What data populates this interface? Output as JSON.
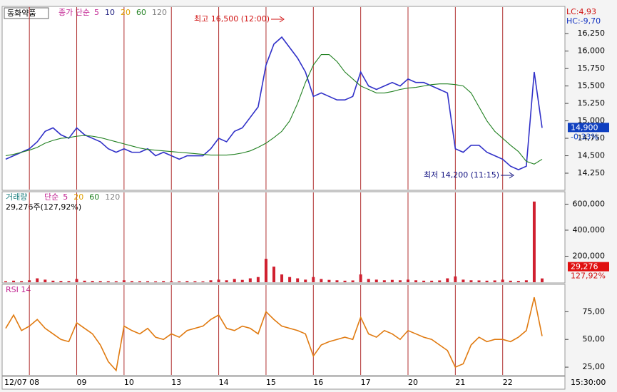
{
  "chart_data": [
    {
      "type": "line",
      "title": "동화약품",
      "legend_title": "종가 단순",
      "legend": [
        {
          "label": "5",
          "color": "#c02090"
        },
        {
          "label": "10",
          "color": "#202080"
        },
        {
          "label": "20",
          "color": "#e0a000"
        },
        {
          "label": "60",
          "color": "#208020"
        },
        {
          "label": "120",
          "color": "#808080"
        }
      ],
      "x_labels": [
        "12/07",
        "08",
        "09",
        "10",
        "13",
        "14",
        "15",
        "16",
        "17",
        "20",
        "21",
        "22"
      ],
      "time_label": "15:30:00",
      "annotations": [
        {
          "text": "최고 16,500 (12:00)",
          "color": "#d01010"
        },
        {
          "text": "최저 14,200 (11:15)",
          "color": "#101080"
        }
      ],
      "lc": "LC:4,93",
      "hc": "HC:-9,70",
      "last_label": "14,900",
      "change_label": "-0,33%",
      "series": [
        {
          "name": "종가",
          "color": "#3030c8",
          "values": [
            14450,
            14500,
            14550,
            14600,
            14700,
            14850,
            14900,
            14800,
            14750,
            14900,
            14800,
            14750,
            14700,
            14600,
            14550,
            14600,
            14550,
            14550,
            14600,
            14500,
            14550,
            14500,
            14450,
            14500,
            14500,
            14500,
            14600,
            14750,
            14700,
            14850,
            14900,
            15050,
            15200,
            15800,
            16100,
            16200,
            16050,
            15900,
            15700,
            15350,
            15400,
            15350,
            15300,
            15300,
            15350,
            15700,
            15500,
            15450,
            15500,
            15550,
            15500,
            15600,
            15550,
            15550,
            15500,
            15450,
            15400,
            14600,
            14550,
            14650,
            14650,
            14550,
            14500,
            14450,
            14350,
            14300,
            14350,
            15700,
            14900
          ]
        },
        {
          "name": "60",
          "color": "#208020",
          "values": [
            14500,
            14520,
            14550,
            14580,
            14620,
            14680,
            14720,
            14750,
            14760,
            14780,
            14790,
            14780,
            14760,
            14730,
            14700,
            14670,
            14640,
            14610,
            14590,
            14580,
            14570,
            14560,
            14550,
            14540,
            14530,
            14520,
            14510,
            14510,
            14510,
            14520,
            14540,
            14570,
            14620,
            14680,
            14760,
            14850,
            15000,
            15250,
            15550,
            15800,
            15950,
            15950,
            15850,
            15700,
            15600,
            15500,
            15450,
            15400,
            15400,
            15420,
            15450,
            15470,
            15480,
            15500,
            15520,
            15530,
            15530,
            15520,
            15500,
            15400,
            15200,
            15000,
            14850,
            14750,
            14650,
            14560,
            14420,
            14380,
            14450
          ]
        }
      ],
      "ylim": [
        14015,
        16630
      ],
      "yticks": [
        {
          "value": 14250,
          "label": "14,250"
        },
        {
          "value": 14500,
          "label": "14,500"
        },
        {
          "value": 14750,
          "label": "14,750"
        },
        {
          "value": 15000,
          "label": "15,000"
        },
        {
          "value": 15250,
          "label": "15,250"
        },
        {
          "value": 15500,
          "label": "15,500"
        },
        {
          "value": 15750,
          "label": "15,750"
        },
        {
          "value": 16000,
          "label": "16,000"
        },
        {
          "value": 16250,
          "label": "16,250"
        }
      ]
    },
    {
      "type": "bar",
      "title": "거래량",
      "legend_title": "단순",
      "legend": [
        {
          "label": "5",
          "color": "#c02090"
        },
        {
          "label": "20",
          "color": "#e0a000"
        },
        {
          "label": "60",
          "color": "#208020"
        },
        {
          "label": "120",
          "color": "#808080"
        }
      ],
      "info": "29,276주(127,92%)",
      "last_label": "29,276",
      "change_label": "127,92%",
      "color": "#d02030",
      "values": [
        8000,
        12000,
        9000,
        15000,
        30000,
        20000,
        12000,
        10000,
        9000,
        25000,
        12000,
        10000,
        9000,
        8000,
        8000,
        15000,
        9000,
        8000,
        8000,
        7000,
        9000,
        8000,
        7000,
        9000,
        8000,
        7000,
        15000,
        20000,
        15000,
        25000,
        18000,
        30000,
        40000,
        180000,
        120000,
        60000,
        40000,
        30000,
        20000,
        40000,
        25000,
        18000,
        15000,
        12000,
        14000,
        60000,
        25000,
        20000,
        15000,
        18000,
        15000,
        20000,
        15000,
        12000,
        12000,
        14000,
        30000,
        45000,
        20000,
        15000,
        14000,
        12000,
        14000,
        20000,
        12000,
        10000,
        15000,
        620000,
        29276
      ],
      "ylim": [
        0,
        690000
      ],
      "yticks": [
        {
          "value": 200000,
          "label": "200,000"
        },
        {
          "value": 400000,
          "label": "400,000"
        },
        {
          "value": 600000,
          "label": "600,000"
        }
      ]
    },
    {
      "type": "line",
      "title": "RSI 14",
      "series": [
        {
          "name": "RSI",
          "color": "#e07a10",
          "values": [
            60,
            72,
            58,
            62,
            68,
            60,
            55,
            50,
            48,
            65,
            60,
            55,
            45,
            30,
            22,
            62,
            58,
            55,
            60,
            52,
            50,
            55,
            52,
            58,
            60,
            62,
            68,
            72,
            60,
            58,
            62,
            60,
            55,
            75,
            68,
            62,
            60,
            58,
            55,
            35,
            45,
            48,
            50,
            52,
            50,
            70,
            55,
            52,
            58,
            55,
            50,
            58,
            55,
            52,
            50,
            45,
            40,
            25,
            28,
            45,
            52,
            48,
            50,
            50,
            48,
            52,
            58,
            88,
            53
          ]
        }
      ],
      "ylim": [
        18,
        99
      ],
      "yticks": [
        {
          "value": 25,
          "label": "25,00"
        },
        {
          "value": 50,
          "label": "50,00"
        },
        {
          "value": 75,
          "label": "75,00"
        }
      ]
    }
  ]
}
